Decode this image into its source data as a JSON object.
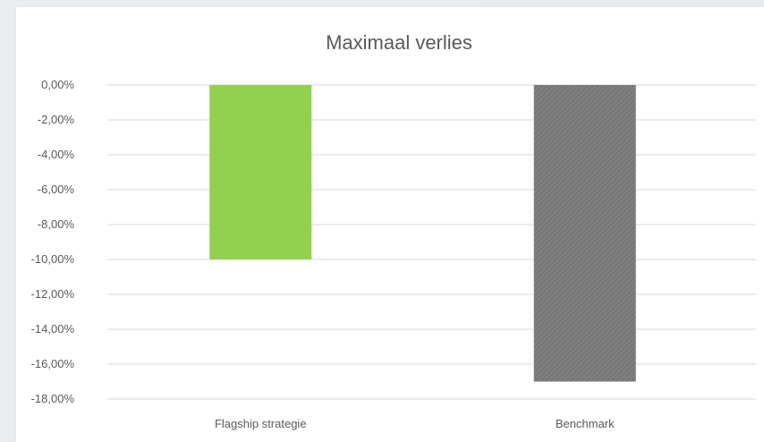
{
  "chart_data": {
    "type": "bar",
    "title": "Maximaal verlies",
    "xlabel": "",
    "ylabel": "",
    "categories": [
      "Flagship strategie",
      "Benchmark"
    ],
    "values": [
      -10.0,
      -17.0
    ],
    "colors": [
      "#92d050",
      "#808080"
    ],
    "bar_styles": [
      "solid",
      "hatched"
    ],
    "ylim": [
      -18,
      0
    ],
    "yticks": [
      0,
      -2,
      -4,
      -6,
      -8,
      -10,
      -12,
      -14,
      -16,
      -18
    ],
    "ytick_labels": [
      "0,00%",
      "-2,00%",
      "-4,00%",
      "-6,00%",
      "-8,00%",
      "-10,00%",
      "-12,00%",
      "-14,00%",
      "-16,00%",
      "-18,00%"
    ],
    "grid": true,
    "legend": "none"
  }
}
